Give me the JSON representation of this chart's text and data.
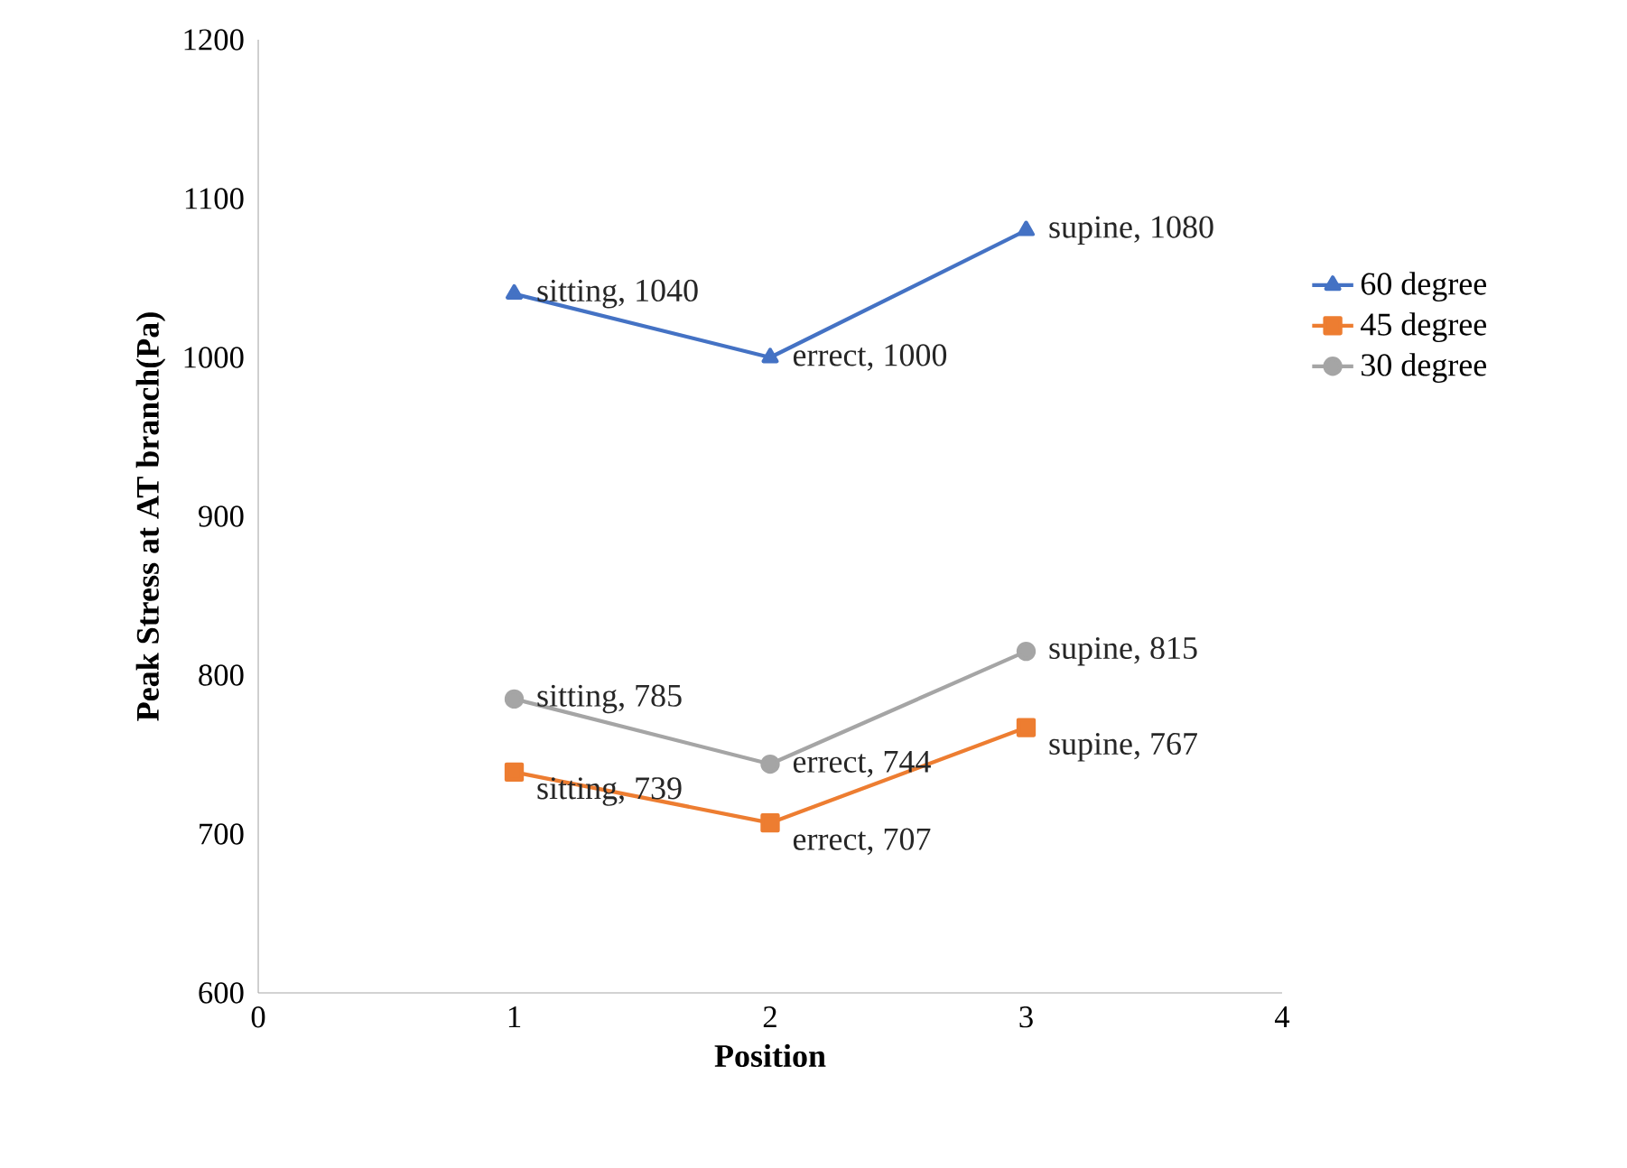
{
  "chart_data": {
    "type": "line",
    "xlabel": "Position",
    "ylabel": "Peak Stress at AT branch(Pa)",
    "x": [
      1,
      2,
      3
    ],
    "xlim": [
      0,
      4
    ],
    "xticks": [
      0,
      1,
      2,
      3,
      4
    ],
    "ylim": [
      600,
      1200
    ],
    "yticks": [
      600,
      700,
      800,
      900,
      1000,
      1100,
      1200
    ],
    "grid": false,
    "legend": "right",
    "series": [
      {
        "name": "60 degree",
        "color": "#4472c4",
        "marker": "triangle",
        "values": [
          1040,
          1000,
          1080
        ],
        "value_labels": [
          "sitting, 1040",
          "errect, 1000",
          "supine, 1080"
        ]
      },
      {
        "name": "45 degree",
        "color": "#ed7d31",
        "marker": "square",
        "values": [
          739,
          707,
          767
        ],
        "value_labels": [
          "sitting, 739",
          "errect, 707",
          "supine, 767"
        ]
      },
      {
        "name": "30 degree",
        "color": "#a5a5a5",
        "marker": "circle",
        "values": [
          785,
          744,
          815
        ],
        "value_labels": [
          "sitting, 785",
          "errect, 744",
          "supine, 815"
        ]
      }
    ]
  }
}
